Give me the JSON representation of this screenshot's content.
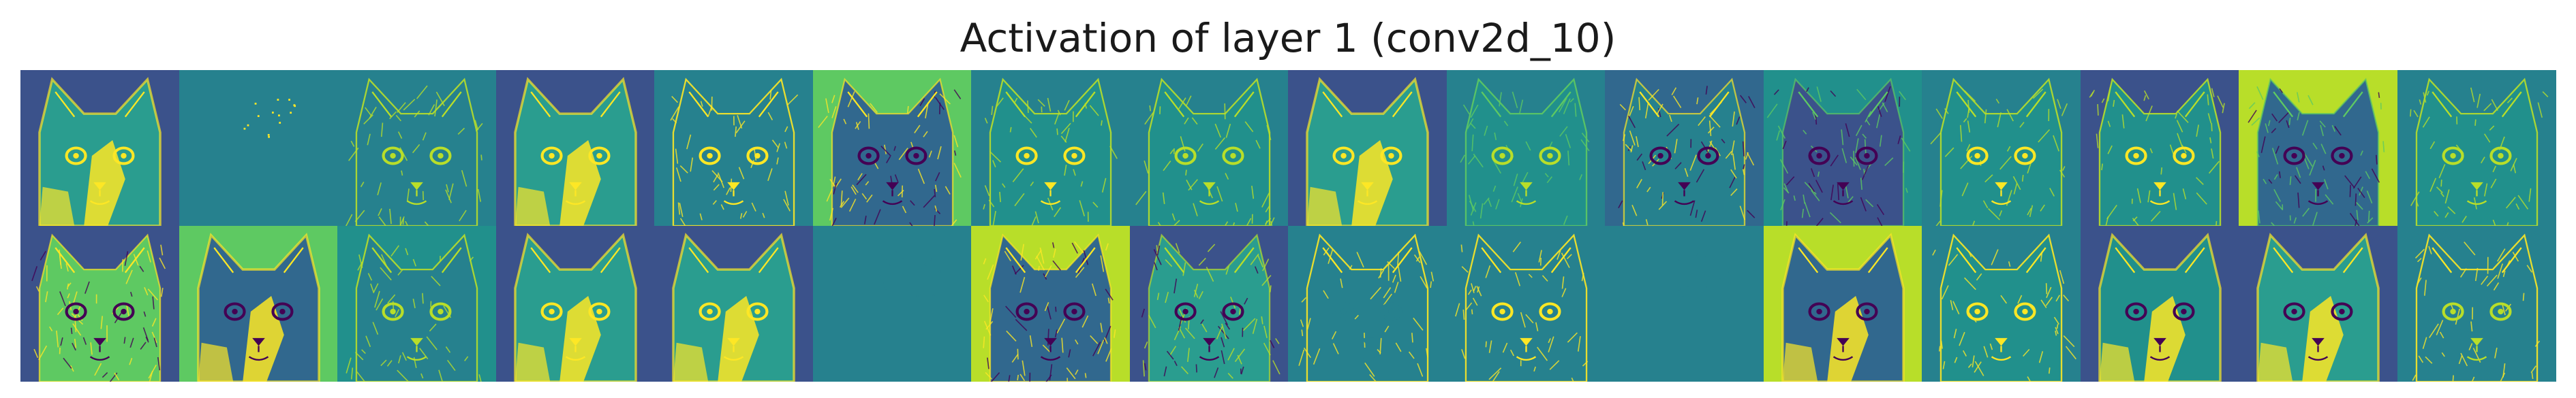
{
  "title": "Activation of layer 1 (conv2d_10)",
  "grid": {
    "rows": 2,
    "cols": 16,
    "colormap": "viridis"
  },
  "palette": {
    "purple": "#440154",
    "indigo": "#3b528b",
    "teal": "#21908c",
    "green": "#5ec962",
    "yellow": "#fde725"
  },
  "tiles": [
    {
      "style": "solid",
      "bg": "#3b528b",
      "face": "#2a9d8f",
      "edge": "#fde725",
      "eye": "#fde725"
    },
    {
      "style": "flat",
      "bg": "#26818e",
      "face": "#26818e",
      "edge": "#fde725",
      "eye": "#26818e"
    },
    {
      "style": "sketch",
      "bg": "#26818e",
      "face": "#26818e",
      "edge": "#b8de29",
      "eye": "#b8de29"
    },
    {
      "style": "solid",
      "bg": "#3b528b",
      "face": "#2a9d8f",
      "edge": "#fde725",
      "eye": "#fde725"
    },
    {
      "style": "sketch",
      "bg": "#26818e",
      "face": "#26818e",
      "edge": "#fde725",
      "eye": "#fde725"
    },
    {
      "style": "texture",
      "bg": "#5ec962",
      "face": "#31688e",
      "edge": "#fde725",
      "eye": "#440154"
    },
    {
      "style": "sketch",
      "bg": "#26818e",
      "face": "#21908c",
      "edge": "#b8de29",
      "eye": "#fde725"
    },
    {
      "style": "sketch",
      "bg": "#26818e",
      "face": "#21908c",
      "edge": "#b8de29",
      "eye": "#b8de29"
    },
    {
      "style": "solid",
      "bg": "#3b528b",
      "face": "#2a9d8f",
      "edge": "#fde725",
      "eye": "#fde725"
    },
    {
      "style": "sketch",
      "bg": "#26818e",
      "face": "#21908c",
      "edge": "#5ec962",
      "eye": "#b8de29"
    },
    {
      "style": "texture",
      "bg": "#31688e",
      "face": "#26818e",
      "edge": "#fde725",
      "eye": "#440154"
    },
    {
      "style": "texture",
      "bg": "#21908c",
      "face": "#3b528b",
      "edge": "#5ec962",
      "eye": "#440154"
    },
    {
      "style": "sketch",
      "bg": "#26818e",
      "face": "#21908c",
      "edge": "#b8de29",
      "eye": "#fde725"
    },
    {
      "style": "sketch",
      "bg": "#3b528b",
      "face": "#21908c",
      "edge": "#b8de29",
      "eye": "#fde725"
    },
    {
      "style": "texture",
      "bg": "#b8de29",
      "face": "#31688e",
      "edge": "#5ec962",
      "eye": "#440154"
    },
    {
      "style": "sketch",
      "bg": "#26818e",
      "face": "#21908c",
      "edge": "#b8de29",
      "eye": "#b8de29"
    },
    {
      "style": "texture",
      "bg": "#3b528b",
      "face": "#5ec962",
      "edge": "#fde725",
      "eye": "#440154"
    },
    {
      "style": "solid",
      "bg": "#5ec962",
      "face": "#31688e",
      "edge": "#fde725",
      "eye": "#440154"
    },
    {
      "style": "sketch",
      "bg": "#21908c",
      "face": "#26818e",
      "edge": "#b8de29",
      "eye": "#b8de29"
    },
    {
      "style": "solid",
      "bg": "#3b528b",
      "face": "#2a9d8f",
      "edge": "#fde725",
      "eye": "#fde725"
    },
    {
      "style": "solid",
      "bg": "#3b528b",
      "face": "#2a9d8f",
      "edge": "#fde725",
      "eye": "#fde725"
    },
    {
      "style": "flat",
      "bg": "#26818e",
      "face": "#26818e",
      "edge": "#26818e",
      "eye": "#26818e"
    },
    {
      "style": "texture",
      "bg": "#b8de29",
      "face": "#31688e",
      "edge": "#fde725",
      "eye": "#440154"
    },
    {
      "style": "texture",
      "bg": "#3b528b",
      "face": "#2a9d8f",
      "edge": "#b8de29",
      "eye": "#440154"
    },
    {
      "style": "sketch",
      "bg": "#26818e",
      "face": "#26818e",
      "edge": "#fde725",
      "eye": "#26818e"
    },
    {
      "style": "sketch",
      "bg": "#26818e",
      "face": "#26818e",
      "edge": "#fde725",
      "eye": "#fde725"
    },
    {
      "style": "flat",
      "bg": "#26818e",
      "face": "#26818e",
      "edge": "#26818e",
      "eye": "#26818e"
    },
    {
      "style": "solid",
      "bg": "#b8de29",
      "face": "#31688e",
      "edge": "#fde725",
      "eye": "#440154"
    },
    {
      "style": "sketch",
      "bg": "#26818e",
      "face": "#21908c",
      "edge": "#fde725",
      "eye": "#fde725"
    },
    {
      "style": "solid",
      "bg": "#3b528b",
      "face": "#21908c",
      "edge": "#fde725",
      "eye": "#440154"
    },
    {
      "style": "solid",
      "bg": "#3b528b",
      "face": "#2a9d8f",
      "edge": "#fde725",
      "eye": "#440154"
    },
    {
      "style": "sketch",
      "bg": "#26818e",
      "face": "#26818e",
      "edge": "#fde725",
      "eye": "#b8de29"
    }
  ]
}
